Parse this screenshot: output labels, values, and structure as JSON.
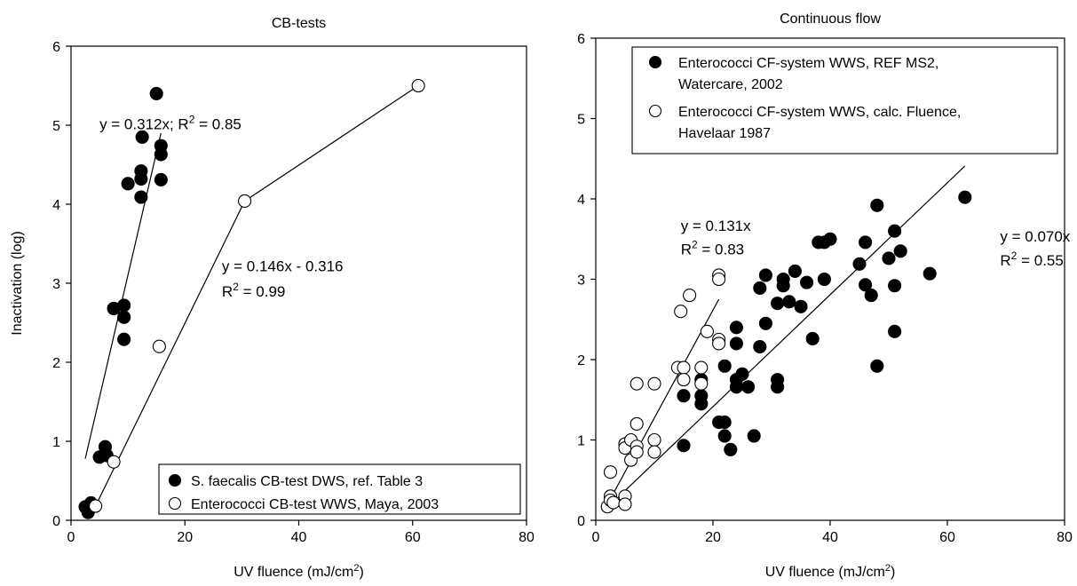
{
  "chart_data": [
    {
      "type": "scatter",
      "title": "CB-tests",
      "xlabel": "UV fluence (mJ/cm2)",
      "ylabel": "Inactivation (log)",
      "xlim": [
        0,
        80
      ],
      "ylim": [
        0,
        6
      ],
      "xticks": [
        0,
        20,
        40,
        60,
        80
      ],
      "yticks": [
        0,
        1,
        2,
        3,
        4,
        5,
        6
      ],
      "grid": false,
      "legend_position": "bottom-right",
      "series": [
        {
          "name": "S. faecalis CB-test DWS, ref. Table 3",
          "marker": "filled",
          "points": [
            [
              2.5,
              0.17
            ],
            [
              3.0,
              0.1
            ],
            [
              3.5,
              0.22
            ],
            [
              5,
              0.8
            ],
            [
              6,
              0.93
            ],
            [
              6.3,
              0.82
            ],
            [
              7.5,
              2.68
            ],
            [
              9.3,
              2.72
            ],
            [
              9.3,
              2.57
            ],
            [
              9.3,
              2.29
            ],
            [
              10,
              4.26
            ],
            [
              12.5,
              4.85
            ],
            [
              12.3,
              4.42
            ],
            [
              12.3,
              4.32
            ],
            [
              12.3,
              4.09
            ],
            [
              15,
              5.4
            ],
            [
              15.8,
              4.74
            ],
            [
              15.8,
              4.63
            ],
            [
              15.8,
              4.31
            ]
          ]
        },
        {
          "name": "Enterococci CB-test WWS, Maya, 2003",
          "marker": "open",
          "points": [
            [
              4.3,
              0.18
            ],
            [
              7.5,
              0.74
            ],
            [
              15.5,
              2.2
            ],
            [
              30.5,
              4.04
            ],
            [
              61,
              5.5
            ]
          ]
        }
      ],
      "lines": [
        {
          "style": "fit",
          "x": [
            2.5,
            15.8
          ],
          "y": [
            0.78,
            4.9
          ]
        },
        {
          "style": "fit",
          "x": [
            4.3,
            30.5
          ],
          "y": [
            0.18,
            4.04
          ]
        },
        {
          "style": "connect",
          "x": [
            30.5,
            61
          ],
          "y": [
            4.04,
            5.5
          ]
        }
      ],
      "annotations": [
        {
          "text": "y = 0.312x; R",
          "sup": "2",
          "tail": " = 0.85",
          "x": 5,
          "y": 4.95
        },
        {
          "text": "y = 0.146x - 0.316",
          "sup": "",
          "tail": "",
          "x": 26.5,
          "y": 3.15
        },
        {
          "text": "R",
          "sup": "2",
          "tail": " = 0.99",
          "x": 26.5,
          "y": 2.83
        }
      ]
    },
    {
      "type": "scatter",
      "title": "Continuous flow",
      "xlabel": "UV fluence (mJ/cm2)",
      "ylabel": "",
      "xlim": [
        0,
        80
      ],
      "ylim": [
        0,
        6
      ],
      "xticks": [
        0,
        20,
        40,
        60,
        80
      ],
      "yticks": [
        0,
        1,
        2,
        3,
        4,
        5,
        6
      ],
      "grid": false,
      "legend_position": "top-right",
      "series": [
        {
          "name": "Enterococci CF-system WWS, REF MS2, Watercare, 2002",
          "legend_lines": [
            "Enterococci CF-system WWS, REF MS2,",
            "Watercare, 2002"
          ],
          "marker": "filled",
          "points": [
            [
              15,
              1.55
            ],
            [
              15,
              0.93
            ],
            [
              18,
              1.75
            ],
            [
              18,
              1.55
            ],
            [
              18,
              1.45
            ],
            [
              21,
              1.22
            ],
            [
              22,
              1.92
            ],
            [
              22,
              1.22
            ],
            [
              22,
              1.05
            ],
            [
              23,
              0.88
            ],
            [
              24,
              2.4
            ],
            [
              24,
              2.2
            ],
            [
              24,
              1.75
            ],
            [
              24,
              1.66
            ],
            [
              25,
              1.82
            ],
            [
              26,
              1.66
            ],
            [
              27,
              1.05
            ],
            [
              28,
              2.89
            ],
            [
              28,
              2.16
            ],
            [
              29,
              3.05
            ],
            [
              29,
              2.45
            ],
            [
              31,
              2.7
            ],
            [
              31,
              1.75
            ],
            [
              31,
              1.66
            ],
            [
              32,
              3.0
            ],
            [
              32,
              2.92
            ],
            [
              33,
              2.72
            ],
            [
              34,
              3.1
            ],
            [
              35,
              2.66
            ],
            [
              36,
              2.96
            ],
            [
              37,
              2.26
            ],
            [
              38,
              3.46
            ],
            [
              39,
              3.46
            ],
            [
              39,
              3.0
            ],
            [
              40,
              3.5
            ],
            [
              45,
              3.19
            ],
            [
              46,
              3.46
            ],
            [
              46,
              2.93
            ],
            [
              47,
              2.8
            ],
            [
              48,
              3.92
            ],
            [
              48,
              1.92
            ],
            [
              50,
              3.26
            ],
            [
              51,
              3.6
            ],
            [
              51,
              2.92
            ],
            [
              51,
              2.35
            ],
            [
              52,
              3.35
            ],
            [
              57,
              3.07
            ],
            [
              63,
              4.02
            ]
          ]
        },
        {
          "name": "Enterococci CF-system WWS, calc. Fluence, Havelaar 1987",
          "legend_lines": [
            "Enterococci CF-system WWS, calc. Fluence,",
            "Havelaar 1987"
          ],
          "marker": "open",
          "points": [
            [
              2,
              0.17
            ],
            [
              2.5,
              0.3
            ],
            [
              2.5,
              0.25
            ],
            [
              2.5,
              0.6
            ],
            [
              3,
              0.22
            ],
            [
              5,
              0.95
            ],
            [
              5,
              0.9
            ],
            [
              5,
              0.3
            ],
            [
              5,
              0.2
            ],
            [
              6,
              1.0
            ],
            [
              6,
              0.75
            ],
            [
              7,
              1.7
            ],
            [
              7,
              1.2
            ],
            [
              7,
              0.92
            ],
            [
              7,
              0.85
            ],
            [
              10,
              1.7
            ],
            [
              10,
              1.0
            ],
            [
              10,
              0.85
            ],
            [
              14,
              1.9
            ],
            [
              14.5,
              2.6
            ],
            [
              15,
              1.9
            ],
            [
              15,
              1.75
            ],
            [
              16,
              2.8
            ],
            [
              18,
              1.9
            ],
            [
              18,
              1.7
            ],
            [
              19,
              2.35
            ],
            [
              21,
              3.05
            ],
            [
              21,
              3.0
            ],
            [
              21,
              2.25
            ],
            [
              21,
              2.2
            ]
          ]
        }
      ],
      "lines": [
        {
          "style": "fit",
          "x": [
            2,
            21
          ],
          "y": [
            0.2,
            2.75
          ]
        },
        {
          "style": "fit",
          "x": [
            2,
            63
          ],
          "y": [
            0.16,
            4.41
          ]
        }
      ],
      "annotations": [
        {
          "text": "y = 0.131x",
          "sup": "",
          "tail": "",
          "x": 14.5,
          "y": 3.6
        },
        {
          "text": "R",
          "sup": "2",
          "tail": " = 0.83",
          "x": 14.5,
          "y": 3.31
        },
        {
          "text": "y = 0.070x",
          "sup": "",
          "tail": "",
          "x": 69,
          "y": 3.47
        },
        {
          "text": "R",
          "sup": "2",
          "tail": " = 0.55",
          "x": 69,
          "y": 3.17
        }
      ]
    }
  ]
}
